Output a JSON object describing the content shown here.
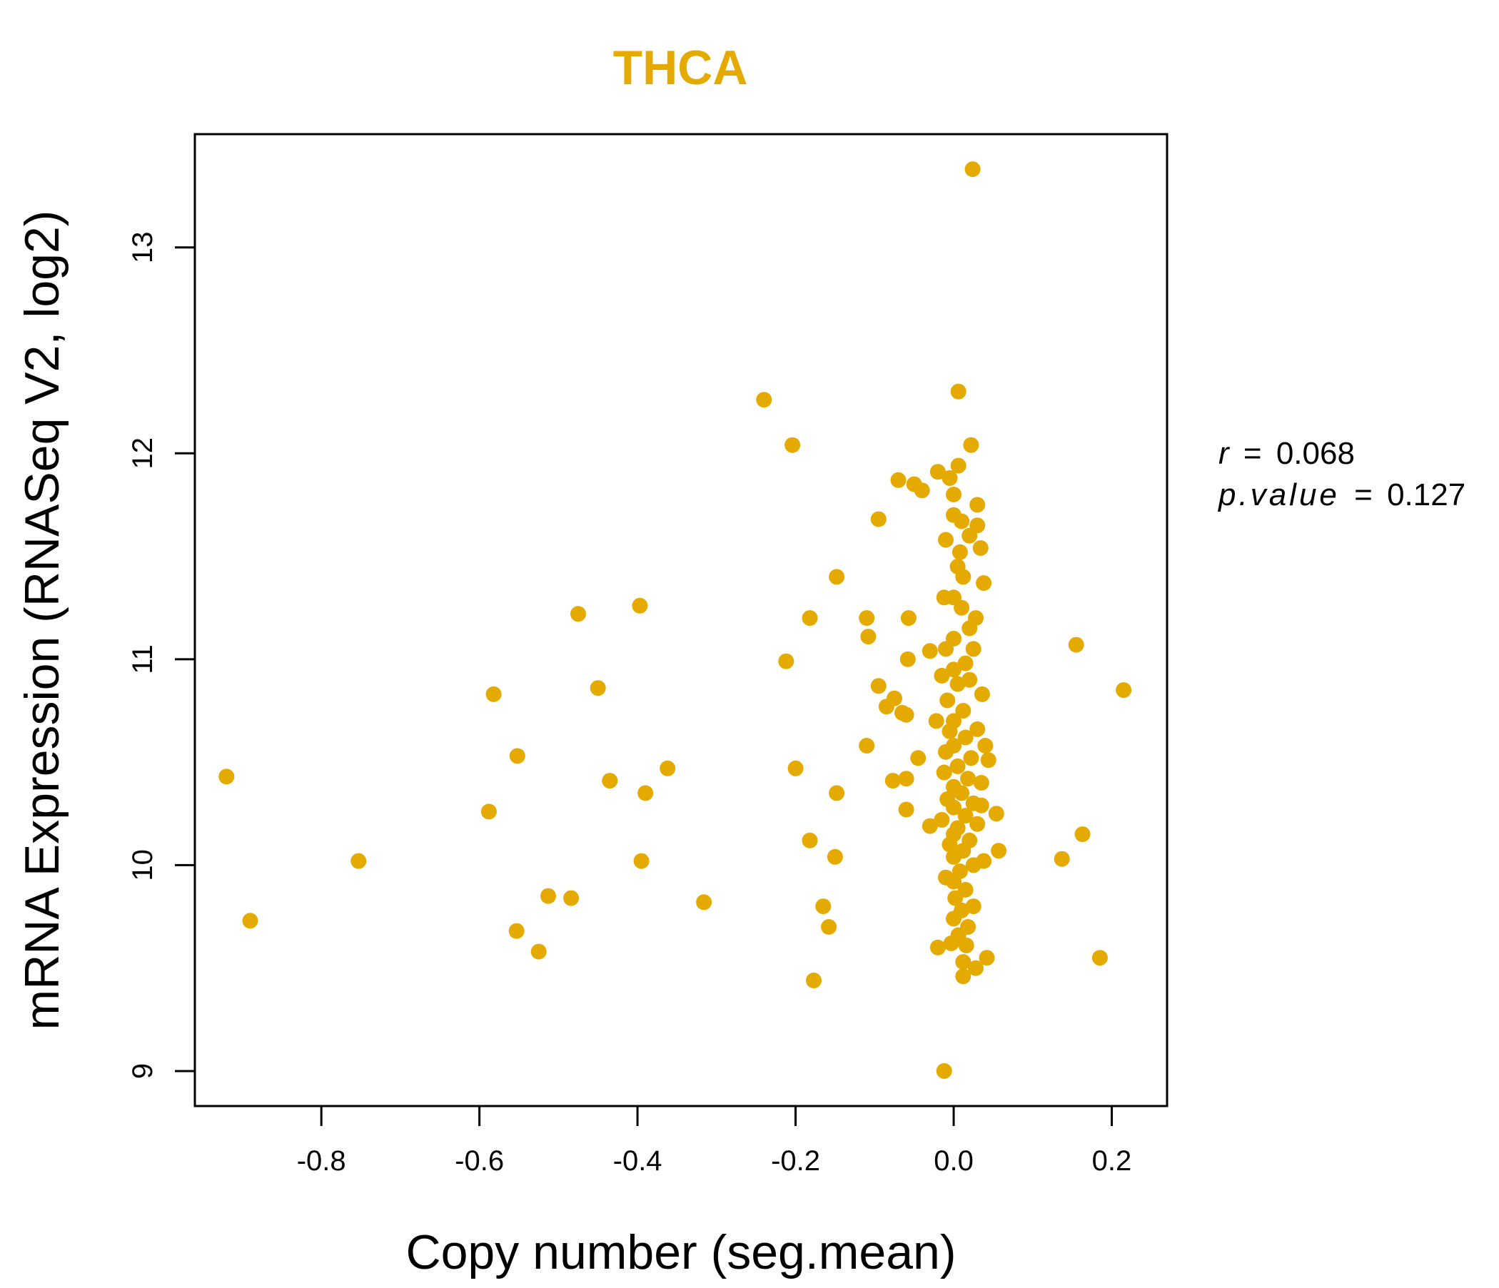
{
  "colors": {
    "accent": "#E5AA00",
    "axis": "#000000",
    "background": "#FFFFFF"
  },
  "chart_data": {
    "type": "scatter",
    "title": "THCA",
    "xlabel": "Copy number (seg.mean)",
    "ylabel": "mRNA Expression (RNASeq V2, log2)",
    "xlim": [
      -0.96,
      0.27
    ],
    "ylim": [
      8.83,
      13.55
    ],
    "xticks": [
      -0.8,
      -0.6,
      -0.4,
      -0.2,
      0.0,
      0.2
    ],
    "xtick_labels": [
      "-0.8",
      "-0.6",
      "-0.4",
      "-0.2",
      "0.0",
      "0.2"
    ],
    "yticks": [
      9,
      10,
      11,
      12,
      13
    ],
    "ytick_labels": [
      "9",
      "10",
      "11",
      "12",
      "13"
    ],
    "annotations": {
      "r_label": "r",
      "r_value": "0.068",
      "p_label": "p.value",
      "p_value": "0.127",
      "equals": "="
    },
    "points": [
      [
        0.024,
        13.38
      ],
      [
        0.006,
        12.3
      ],
      [
        -0.24,
        12.26
      ],
      [
        0.022,
        12.04
      ],
      [
        -0.204,
        12.04
      ],
      [
        0.006,
        11.94
      ],
      [
        -0.07,
        11.87
      ],
      [
        -0.05,
        11.85
      ],
      [
        -0.04,
        11.82
      ],
      [
        -0.02,
        11.91
      ],
      [
        -0.005,
        11.88
      ],
      [
        0.0,
        11.8
      ],
      [
        0.03,
        11.75
      ],
      [
        -0.095,
        11.68
      ],
      [
        0.01,
        11.67
      ],
      [
        0.03,
        11.65
      ],
      [
        0.02,
        11.6
      ],
      [
        -0.01,
        11.58
      ],
      [
        0.034,
        11.54
      ],
      [
        0.008,
        11.52
      ],
      [
        -0.148,
        11.4
      ],
      [
        0.038,
        11.37
      ],
      [
        -0.475,
        11.22
      ],
      [
        -0.397,
        11.26
      ],
      [
        -0.182,
        11.2
      ],
      [
        -0.11,
        11.2
      ],
      [
        -0.057,
        11.2
      ],
      [
        0.028,
        11.2
      ],
      [
        -0.108,
        11.11
      ],
      [
        0.155,
        11.07
      ],
      [
        -0.212,
        10.99
      ],
      [
        -0.058,
        11.0
      ],
      [
        -0.03,
        11.04
      ],
      [
        0.025,
        11.05
      ],
      [
        -0.582,
        10.83
      ],
      [
        -0.45,
        10.86
      ],
      [
        -0.095,
        10.87
      ],
      [
        -0.075,
        10.81
      ],
      [
        -0.085,
        10.77
      ],
      [
        -0.065,
        10.74
      ],
      [
        -0.06,
        10.73
      ],
      [
        0.036,
        10.83
      ],
      [
        0.215,
        10.85
      ],
      [
        -0.022,
        10.7
      ],
      [
        -0.11,
        10.58
      ],
      [
        -0.552,
        10.53
      ],
      [
        -0.045,
        10.52
      ],
      [
        -0.362,
        10.47
      ],
      [
        -0.2,
        10.47
      ],
      [
        -0.92,
        10.43
      ],
      [
        -0.435,
        10.41
      ],
      [
        -0.077,
        10.41
      ],
      [
        -0.06,
        10.42
      ],
      [
        -0.148,
        10.35
      ],
      [
        -0.39,
        10.35
      ],
      [
        -0.06,
        10.27
      ],
      [
        -0.588,
        10.26
      ],
      [
        0.035,
        10.29
      ],
      [
        0.054,
        10.25
      ],
      [
        -0.03,
        10.19
      ],
      [
        -0.182,
        10.12
      ],
      [
        0.163,
        10.15
      ],
      [
        0.057,
        10.07
      ],
      [
        -0.15,
        10.04
      ],
      [
        -0.753,
        10.02
      ],
      [
        -0.395,
        10.02
      ],
      [
        0.137,
        10.03
      ],
      [
        0.038,
        10.02
      ],
      [
        -0.01,
        9.94
      ],
      [
        -0.513,
        9.85
      ],
      [
        -0.484,
        9.84
      ],
      [
        -0.316,
        9.82
      ],
      [
        -0.165,
        9.8
      ],
      [
        0.025,
        9.8
      ],
      [
        -0.89,
        9.73
      ],
      [
        -0.158,
        9.7
      ],
      [
        -0.553,
        9.68
      ],
      [
        0.018,
        9.7
      ],
      [
        -0.02,
        9.6
      ],
      [
        0.016,
        9.61
      ],
      [
        -0.525,
        9.58
      ],
      [
        0.185,
        9.55
      ],
      [
        0.042,
        9.55
      ],
      [
        0.028,
        9.5
      ],
      [
        0.012,
        9.53
      ],
      [
        0.012,
        9.46
      ],
      [
        -0.177,
        9.44
      ],
      [
        -0.012,
        9.0
      ],
      [
        0.0,
        11.7
      ],
      [
        0.005,
        11.45
      ],
      [
        0.012,
        11.4
      ],
      [
        0.0,
        11.3
      ],
      [
        -0.012,
        11.3
      ],
      [
        0.01,
        11.25
      ],
      [
        0.02,
        11.15
      ],
      [
        0.0,
        11.1
      ],
      [
        -0.01,
        11.05
      ],
      [
        0.015,
        10.98
      ],
      [
        0.0,
        10.95
      ],
      [
        -0.015,
        10.92
      ],
      [
        0.02,
        10.9
      ],
      [
        0.005,
        10.88
      ],
      [
        -0.008,
        10.8
      ],
      [
        0.012,
        10.75
      ],
      [
        0.0,
        10.7
      ],
      [
        -0.005,
        10.65
      ],
      [
        0.03,
        10.66
      ],
      [
        0.015,
        10.62
      ],
      [
        0.0,
        10.58
      ],
      [
        0.04,
        10.58
      ],
      [
        -0.01,
        10.55
      ],
      [
        0.022,
        10.52
      ],
      [
        0.044,
        10.51
      ],
      [
        0.005,
        10.48
      ],
      [
        -0.012,
        10.45
      ],
      [
        0.018,
        10.42
      ],
      [
        0.035,
        10.4
      ],
      [
        0.0,
        10.38
      ],
      [
        0.01,
        10.35
      ],
      [
        -0.008,
        10.32
      ],
      [
        0.025,
        10.3
      ],
      [
        0.0,
        10.28
      ],
      [
        0.015,
        10.24
      ],
      [
        -0.015,
        10.22
      ],
      [
        0.03,
        10.2
      ],
      [
        0.005,
        10.18
      ],
      [
        0.0,
        10.15
      ],
      [
        0.02,
        10.12
      ],
      [
        -0.005,
        10.1
      ],
      [
        0.012,
        10.07
      ],
      [
        0.0,
        10.04
      ],
      [
        0.025,
        10.0
      ],
      [
        0.008,
        9.97
      ],
      [
        0.0,
        9.92
      ],
      [
        0.015,
        9.88
      ],
      [
        0.002,
        9.84
      ],
      [
        0.01,
        9.78
      ],
      [
        0.0,
        9.74
      ],
      [
        0.006,
        9.66
      ],
      [
        -0.003,
        9.62
      ]
    ]
  }
}
